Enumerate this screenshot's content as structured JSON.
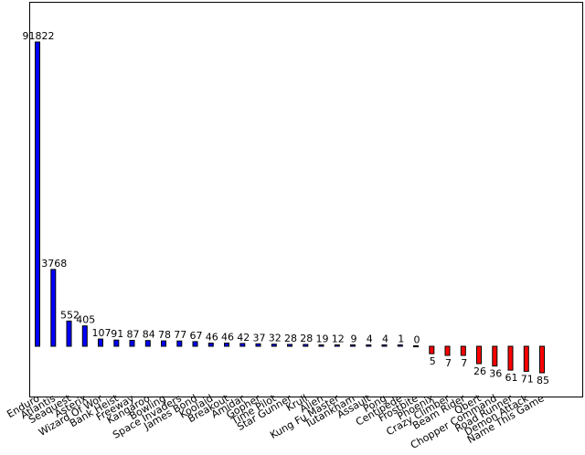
{
  "chart_data": {
    "type": "bar",
    "title": "",
    "xlabel": "",
    "ylabel": "",
    "categories": [
      "Enduro",
      "Atlantis",
      "Seaquest",
      "Asterix",
      "Wizard Of Wor",
      "Bank Heist",
      "Freeway",
      "Kangaroo",
      "Bowling",
      "Space Invaders",
      "James Bond",
      "Koolaid",
      "Breakout",
      "Amidar",
      "Gopher",
      "Time Pilot",
      "Star Gunner",
      "Krull",
      "Alien",
      "Kung Fu Master",
      "Tutankham",
      "Assault",
      "Pong",
      "Centipede",
      "Frostbite",
      "Phoenix",
      "Crazy Climber",
      "Beam Rider",
      "Qbert",
      "Chopper Command",
      "Road Runner",
      "Demon Attack",
      "Name This Game"
    ],
    "values": [
      91822,
      3768,
      552,
      405,
      107,
      91,
      87,
      84,
      78,
      77,
      67,
      46,
      46,
      42,
      37,
      32,
      28,
      28,
      19,
      12,
      9,
      4,
      4,
      1,
      0,
      -5,
      -7,
      -7,
      -26,
      -36,
      -61,
      -71,
      -85
    ],
    "value_labels": [
      "91822",
      "3768",
      "552",
      "405",
      "107",
      "91",
      "87",
      "84",
      "78",
      "77",
      "67",
      "46",
      "46",
      "42",
      "37",
      "32",
      "28",
      "28",
      "19",
      "12",
      "9",
      "4",
      "4",
      "1",
      "0",
      "5",
      "7",
      "7",
      "26",
      "36",
      "61",
      "71",
      "85"
    ],
    "scale": "symmetric-log",
    "positive_color": "#0000ff",
    "negative_color": "#ff0000",
    "grid": false,
    "legend": "none"
  }
}
